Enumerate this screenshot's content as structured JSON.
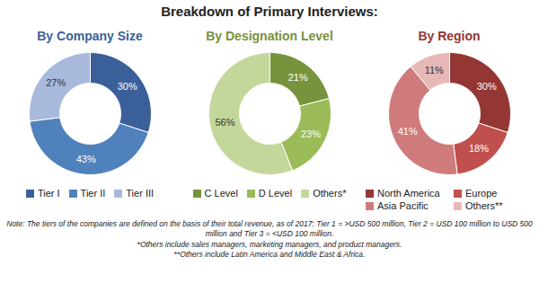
{
  "title": "Breakdown of Primary Interviews:",
  "notes": [
    "Note: The tiers of the companies are defined on the basis of their total revenue, as of 2017: Tier 1 = >USD 500 million, Tier 2 = USD 100 million to USD 500 million and Tier 3 = <USD 100 million.",
    "*Others include sales managers, marketing managers, and product managers.",
    "**Others include Latin America and Middle East & Africa."
  ],
  "chart_data": [
    {
      "type": "donut",
      "title": "By Company Size",
      "categories": [
        "Tier I",
        "Tier II",
        "Tier III"
      ],
      "values": [
        30,
        43,
        27
      ],
      "value_labels": [
        "30%",
        "43%",
        "27%"
      ],
      "colors": [
        "#3b5f99",
        "#4f81bd",
        "#a8b9db"
      ],
      "data_labels": true,
      "legend": "bottom"
    },
    {
      "type": "donut",
      "title": "By Designation Level",
      "categories": [
        "C Level",
        "D Level",
        "Others*"
      ],
      "values": [
        21,
        23,
        56
      ],
      "value_labels": [
        "21%",
        "23%",
        "56%"
      ],
      "colors": [
        "#77933c",
        "#9bbb59",
        "#c4d79b"
      ],
      "data_labels": true,
      "legend": "bottom"
    },
    {
      "type": "donut",
      "title": "By Region",
      "categories": [
        "North America",
        "Europe",
        "Asia Pacific",
        "Others**"
      ],
      "values": [
        30,
        18,
        41,
        11
      ],
      "value_labels": [
        "30%",
        "18%",
        "41%",
        "11%"
      ],
      "colors": [
        "#943634",
        "#c0504d",
        "#cf7b7b",
        "#e6b9b8"
      ],
      "data_labels": true,
      "legend": "bottom"
    }
  ]
}
